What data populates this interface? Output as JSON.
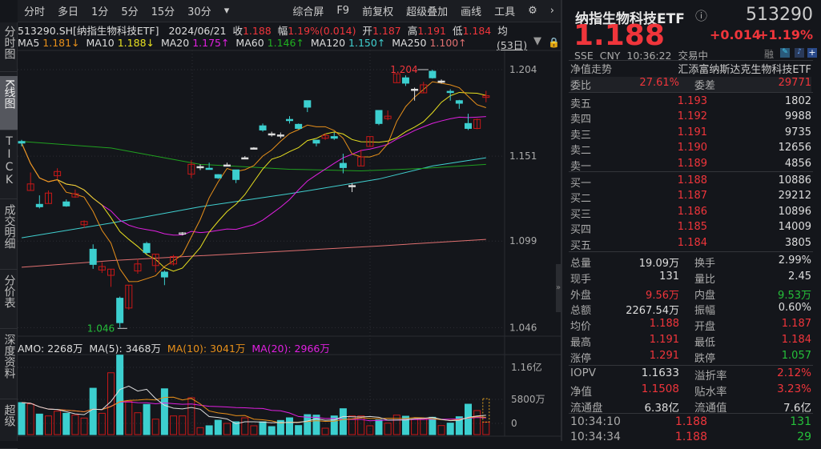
{
  "toolbar": {
    "tabs": [
      "分时",
      "多日",
      "1分",
      "5分",
      "15分",
      "30分"
    ],
    "more": "▾",
    "right": [
      "综合屏",
      "F9",
      "前复权",
      "超级叠加",
      "画线",
      "工具"
    ],
    "gear": "gear-icon",
    "next": "›"
  },
  "sidebar": [
    "分时图",
    "K线图",
    "TICK",
    "成交明细",
    "分价表",
    "深度资料",
    "超级"
  ],
  "info": {
    "code": "513290.SH[纳指生物科技ETF]",
    "date": "2024/06/21",
    "close_l": "收",
    "close": "1.188",
    "amp_l": "幅",
    "amp": "1.19%(0.014)",
    "open_l": "开",
    "open": "1.187",
    "high_l": "高",
    "high": "1.191",
    "low_l": "低",
    "low": "1.184",
    "avg_l": "均"
  },
  "ma": {
    "items": [
      {
        "label": "MA5",
        "value": "1.181↓",
        "color": "#e8901a"
      },
      {
        "label": "MA10",
        "value": "1.188↓",
        "color": "#e8e020"
      },
      {
        "label": "MA20",
        "value": "1.175↑",
        "color": "#e020e0"
      },
      {
        "label": "MA60",
        "value": "1.146↑",
        "color": "#20b020"
      },
      {
        "label": "MA120",
        "value": "1.150↑",
        "color": "#40d0d0"
      },
      {
        "label": "MA250",
        "value": "1.100↑",
        "color": "#e07070"
      }
    ],
    "period": "(53日)"
  },
  "volume_header": {
    "amo": "AMO: 2268万",
    "ma5": "MA(5): 3468万",
    "ma10": "MA(10): 3041万",
    "ma20": "MA(20): 2966万"
  },
  "chart_data": {
    "type": "candlestick",
    "y_ticks": [
      "1.204",
      "1.151",
      "1.099",
      "1.046"
    ],
    "high_label": "1.204",
    "low_label": "1.046",
    "vol_ticks": [
      "1.16亿",
      "5800万",
      "0"
    ],
    "candles": [
      [
        1.16,
        1.159,
        1.161,
        1.157
      ],
      [
        1.13,
        1.134,
        1.141,
        1.13
      ],
      [
        1.1215,
        1.12,
        1.127,
        1.119
      ],
      [
        1.122,
        1.1284,
        1.13,
        1.122
      ],
      [
        1.139,
        1.1416,
        1.1436,
        1.137
      ],
      [
        1.123,
        1.1205,
        1.1245,
        1.12
      ],
      [
        1.126,
        1.128,
        1.1306,
        1.1255
      ],
      [
        1.109,
        1.111,
        1.1117,
        1.107
      ],
      [
        1.094,
        1.0847,
        1.097,
        1.082
      ],
      [
        1.0813,
        1.0834,
        1.086,
        1.0795
      ],
      [
        1.078,
        1.0818,
        1.0818,
        1.071
      ],
      [
        1.064,
        1.049,
        1.065,
        1.046
      ],
      [
        1.058,
        1.072,
        1.072,
        1.057
      ],
      [
        1.0807,
        1.085,
        1.088,
        1.079
      ],
      [
        1.0975,
        1.092,
        1.0985,
        1.091
      ],
      [
        1.084,
        1.091,
        1.091,
        1.08
      ],
      [
        1.08,
        1.077,
        1.081,
        1.072
      ],
      [
        1.085,
        1.0895,
        1.0905,
        1.084
      ],
      [
        1.1035,
        1.104,
        1.1045,
        1.1025
      ],
      [
        1.14,
        1.146,
        1.1485,
        1.1375
      ],
      [
        1.1446,
        1.1446,
        1.146,
        1.1425
      ],
      [
        1.1436,
        1.1436,
        1.147,
        1.1436
      ],
      [
        1.1397,
        1.1377,
        1.14,
        1.137
      ],
      [
        1.1456,
        1.1456,
        1.147,
        1.145
      ],
      [
        1.1426,
        1.1367,
        1.1426,
        1.1345
      ],
      [
        1.15,
        1.15,
        1.151,
        1.1495
      ],
      [
        1.156,
        1.156,
        1.1565,
        1.1555
      ],
      [
        1.1696,
        1.167,
        1.171,
        1.166
      ],
      [
        1.1647,
        1.1642,
        1.166,
        1.163
      ],
      [
        1.164,
        1.1635,
        1.1655,
        1.162
      ],
      [
        1.1735,
        1.1735,
        1.1755,
        1.171
      ],
      [
        1.1705,
        1.168,
        1.171,
        1.1675
      ],
      [
        1.185,
        1.181,
        1.185,
        1.178
      ],
      [
        1.1608,
        1.159,
        1.161,
        1.157
      ],
      [
        1.162,
        1.1637,
        1.165,
        1.161
      ],
      [
        1.163,
        1.162,
        1.1655,
        1.161
      ],
      [
        1.1466,
        1.144,
        1.1525,
        1.1405
      ],
      [
        1.133,
        1.133,
        1.1345,
        1.129
      ],
      [
        1.145,
        1.1505,
        1.155,
        1.145
      ],
      [
        1.157,
        1.163,
        1.163,
        1.157
      ],
      [
        1.179,
        1.171,
        1.179,
        1.17
      ],
      [
        1.174,
        1.1755,
        1.179,
        1.173
      ],
      [
        1.196,
        1.2015,
        1.2015,
        1.196
      ],
      [
        1.199,
        1.1957,
        1.2005,
        1.194
      ],
      [
        1.192,
        1.192,
        1.193,
        1.185
      ],
      [
        1.1898,
        1.1947,
        1.1965,
        1.1895
      ],
      [
        1.203,
        1.199,
        1.204,
        1.1985
      ],
      [
        1.197,
        1.197,
        1.198,
        1.1955
      ],
      [
        1.1907,
        1.1907,
        1.192,
        1.185
      ],
      [
        1.185,
        1.1834,
        1.1855,
        1.18
      ],
      [
        1.171,
        1.168,
        1.177,
        1.167
      ],
      [
        1.168,
        1.1735,
        1.174,
        1.1675
      ],
      [
        1.187,
        1.188,
        1.191,
        1.184
      ]
    ],
    "ma60": [
      [
        0,
        1.16
      ],
      [
        10,
        1.156
      ],
      [
        20,
        1.146
      ],
      [
        30,
        1.143
      ],
      [
        38,
        1.142
      ],
      [
        45,
        1.1435
      ],
      [
        52,
        1.146
      ]
    ],
    "ma120": [
      [
        0,
        1.101
      ],
      [
        10,
        1.11
      ],
      [
        20,
        1.12
      ],
      [
        30,
        1.128
      ],
      [
        40,
        1.137
      ],
      [
        46,
        1.145
      ],
      [
        52,
        1.15
      ]
    ],
    "ma250": [
      [
        0,
        1.083
      ],
      [
        10,
        1.087
      ],
      [
        20,
        1.09
      ],
      [
        30,
        1.093
      ],
      [
        40,
        1.096
      ],
      [
        52,
        1.1
      ]
    ],
    "volume": [
      5800,
      5560,
      3720,
      3380,
      4250,
      3860,
      3530,
      3000,
      8400,
      3860,
      11200,
      14400,
      6040,
      3960,
      5460,
      2800,
      8300,
      3380,
      3380,
      6670,
      1260,
      1600,
      2600,
      2030,
      2320,
      3040,
      1600,
      2320,
      1450,
      2560,
      3040,
      1640,
      3620,
      3530,
      1160,
      3380,
      4690,
      3380,
      3380,
      1600,
      2660,
      2080,
      3530,
      3330,
      2800,
      2900,
      3140,
      1640,
      2080,
      3240,
      5510,
      4350,
      2268
    ],
    "colors": {
      "up": "#c81818",
      "down": "#3ccfcf",
      "ma5": "#e8901a",
      "ma10": "#e8e020",
      "ma20": "#e020e0",
      "ma60": "#20a020",
      "ma120": "#40d0d0",
      "ma250": "#e07070",
      "vma5": "#dddddd"
    }
  },
  "quote": {
    "name": "纳指生物科技ETF",
    "code": "513290",
    "price": "1.188",
    "change": "+0.014",
    "pct": "+1.19%",
    "meta": "SSE  CNY  10:36:22  交易中",
    "rong": "融",
    "nav_l": "净值走势",
    "fund": "汇添富纳斯达克生物科技ETF",
    "wb_l": "委比",
    "wb": "27.61%",
    "wc_l": "委差",
    "wc": "29771",
    "asks": [
      {
        "l": "卖五",
        "p": "1.193",
        "v": "1802"
      },
      {
        "l": "卖四",
        "p": "1.192",
        "v": "9988"
      },
      {
        "l": "卖三",
        "p": "1.191",
        "v": "9735"
      },
      {
        "l": "卖二",
        "p": "1.190",
        "v": "12656"
      },
      {
        "l": "卖一",
        "p": "1.189",
        "v": "4856"
      }
    ],
    "bids": [
      {
        "l": "买一",
        "p": "1.188",
        "v": "10886"
      },
      {
        "l": "买二",
        "p": "1.187",
        "v": "29212"
      },
      {
        "l": "买三",
        "p": "1.186",
        "v": "10896"
      },
      {
        "l": "买四",
        "p": "1.185",
        "v": "14009"
      },
      {
        "l": "买五",
        "p": "1.184",
        "v": "3805"
      }
    ],
    "stats": [
      {
        "l1": "总量",
        "v1": "19.09万",
        "c1": "wht",
        "l2": "换手",
        "v2": "2.99%",
        "c2": "wht"
      },
      {
        "l1": "现手",
        "v1": "131",
        "c1": "wht",
        "l2": "量比",
        "v2": "2.45",
        "c2": "wht"
      },
      {
        "l1": "外盘",
        "v1": "9.56万",
        "c1": "red",
        "l2": "内盘",
        "v2": "9.53万",
        "c2": "grn"
      },
      {
        "l1": "总额",
        "v1": "2267.54万",
        "c1": "wht",
        "l2": "振幅",
        "v2": "0.60%",
        "c2": "wht"
      },
      {
        "l1": "均价",
        "v1": "1.188",
        "c1": "red",
        "l2": "开盘",
        "v2": "1.187",
        "c2": "red"
      },
      {
        "l1": "最高",
        "v1": "1.191",
        "c1": "red",
        "l2": "最低",
        "v2": "1.184",
        "c2": "red"
      },
      {
        "l1": "涨停",
        "v1": "1.291",
        "c1": "red",
        "l2": "跌停",
        "v2": "1.057",
        "c2": "grn"
      }
    ],
    "etf": [
      {
        "l1": "IOPV",
        "v1": "1.1633",
        "c1": "wht",
        "l2": "溢折率",
        "v2": "2.12%",
        "c2": "red"
      },
      {
        "l1": "净值",
        "v1": "1.1508",
        "c1": "red",
        "l2": "贴水率",
        "v2": "3.23%",
        "c2": "red"
      },
      {
        "l1": "流通盘",
        "v1": "6.38亿",
        "c1": "wht",
        "l2": "流通值",
        "v2": "7.6亿",
        "c2": "wht"
      }
    ],
    "ticks": [
      {
        "t": "10:34:10",
        "p": "1.188",
        "v": "131"
      },
      {
        "t": "10:34:34",
        "p": "1.188",
        "v": "29"
      }
    ]
  }
}
